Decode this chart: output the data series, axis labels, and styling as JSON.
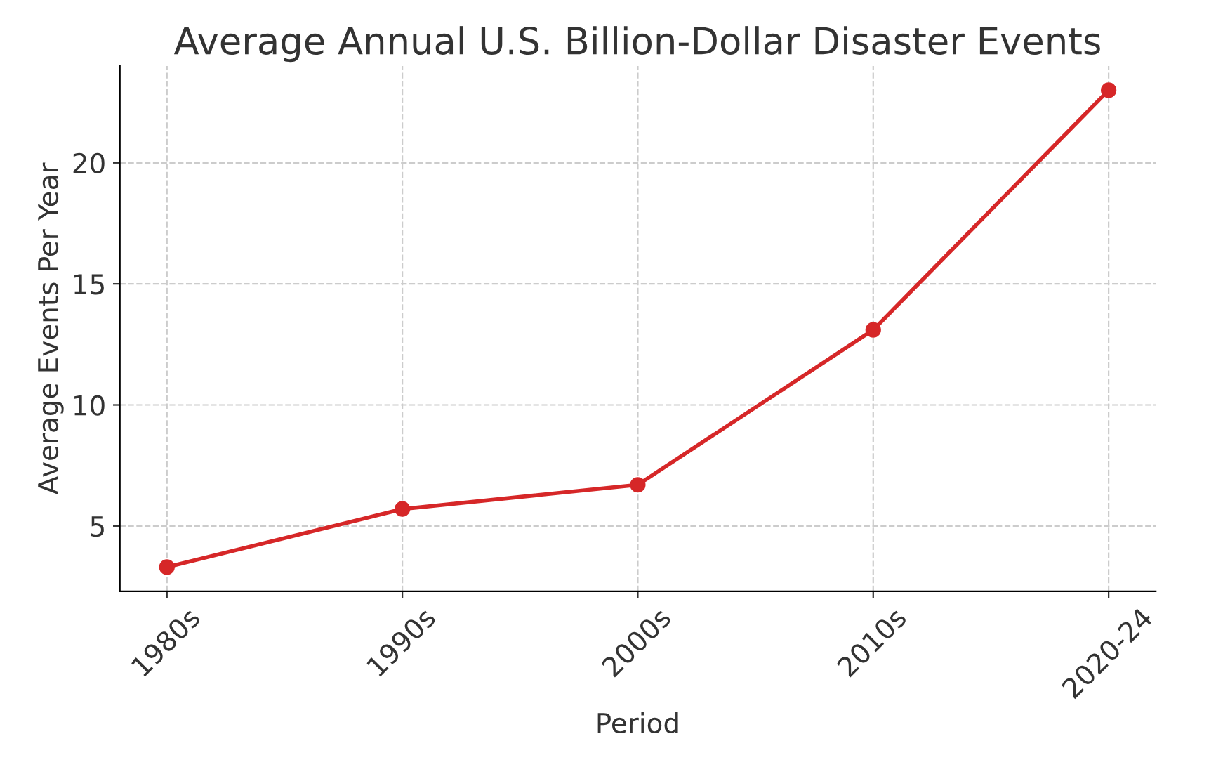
{
  "chart_data": {
    "type": "line",
    "title": "Average Annual U.S. Billion-Dollar Disaster Events",
    "xlabel": "Period",
    "ylabel": "Average Events Per Year",
    "categories": [
      "1980s",
      "1990s",
      "2000s",
      "2010s",
      "2020-24"
    ],
    "series": [
      {
        "color": "#d62728",
        "values": [
          3.3,
          5.7,
          6.7,
          13.1,
          23.0
        ]
      }
    ],
    "ylim": [
      2.3,
      24.0
    ],
    "yticks": [
      5,
      10,
      15,
      20
    ],
    "grid": true,
    "marker": "circle",
    "line_style": "solid"
  }
}
